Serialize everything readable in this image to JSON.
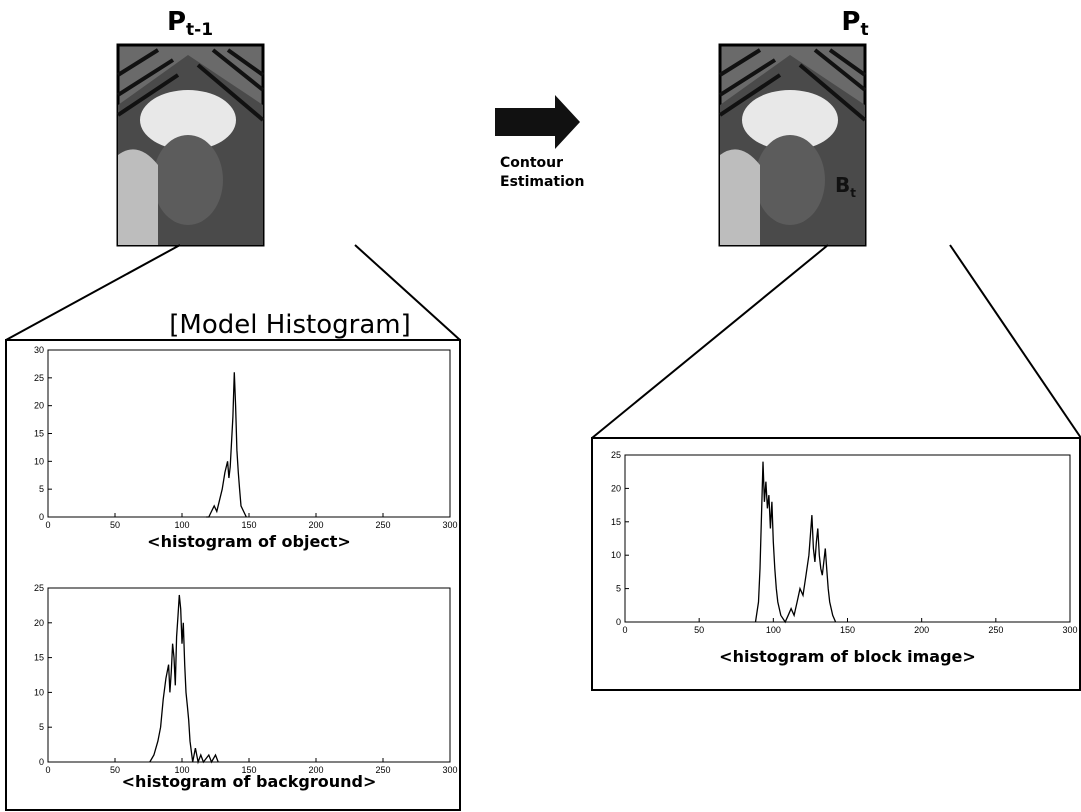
{
  "labels": {
    "left_frame": "P",
    "left_sub": "t-1",
    "right_frame": "P",
    "right_sub": "t",
    "arrow_label": [
      "Contour",
      "Estimation"
    ],
    "model_title": "[Model Histogram]",
    "photo_label": "B",
    "photo_sub": "t"
  },
  "chart_data": [
    {
      "type": "line",
      "caption": "<histogram of object>",
      "color": "#000000",
      "x": [
        118,
        120,
        122,
        124,
        126,
        128,
        130,
        132,
        134,
        135,
        136,
        138,
        139,
        140,
        141,
        142,
        143,
        144,
        146,
        148
      ],
      "values": [
        0,
        0,
        1,
        2,
        1,
        3,
        5,
        8,
        10,
        7,
        9,
        18,
        26,
        20,
        12,
        8,
        5,
        2,
        1,
        0
      ],
      "xlim": [
        0,
        300
      ],
      "ylim": [
        0,
        30
      ],
      "xticks": [
        0,
        50,
        100,
        150,
        200,
        250,
        300
      ],
      "yticks": [
        0,
        5,
        10,
        15,
        20,
        25,
        30
      ]
    },
    {
      "type": "line",
      "caption": "<histogram of background>",
      "color": "#000000",
      "x": [
        76,
        79,
        82,
        84,
        86,
        88,
        90,
        91,
        92,
        93,
        94,
        95,
        96,
        97,
        98,
        99,
        100,
        101,
        102,
        103,
        104,
        105,
        106,
        108,
        110,
        112,
        114,
        116,
        120,
        122,
        125,
        127
      ],
      "values": [
        0,
        1,
        3,
        5,
        9,
        12,
        14,
        10,
        13,
        17,
        15,
        11,
        18,
        21,
        24,
        22,
        17,
        20,
        14,
        10,
        8,
        6,
        3,
        0,
        2,
        0,
        1,
        0,
        1,
        0,
        1,
        0
      ],
      "xlim": [
        0,
        300
      ],
      "ylim": [
        0,
        25
      ],
      "xticks": [
        0,
        50,
        100,
        150,
        200,
        250,
        300
      ],
      "yticks": [
        0,
        5,
        10,
        15,
        20,
        25
      ]
    },
    {
      "type": "line",
      "caption": "<histogram of block image>",
      "color": "#000000",
      "x": [
        88,
        90,
        91,
        92,
        93,
        94,
        95,
        96,
        97,
        98,
        99,
        100,
        101,
        102,
        103,
        105,
        108,
        110,
        112,
        114,
        116,
        118,
        120,
        122,
        124,
        125,
        126,
        127,
        128,
        129,
        130,
        131,
        132,
        133,
        134,
        135,
        136,
        137,
        138,
        140,
        142
      ],
      "values": [
        0,
        3,
        8,
        16,
        24,
        18,
        21,
        17,
        19,
        14,
        18,
        12,
        8,
        5,
        3,
        1,
        0,
        1,
        2,
        1,
        3,
        5,
        4,
        7,
        10,
        13,
        16,
        11,
        9,
        12,
        14,
        10,
        8,
        7,
        9,
        11,
        8,
        5,
        3,
        1,
        0
      ],
      "xlim": [
        0,
        300
      ],
      "ylim": [
        0,
        25
      ],
      "xticks": [
        0,
        50,
        100,
        150,
        200,
        250,
        300
      ],
      "yticks": [
        0,
        5,
        10,
        15,
        20,
        25
      ]
    }
  ]
}
